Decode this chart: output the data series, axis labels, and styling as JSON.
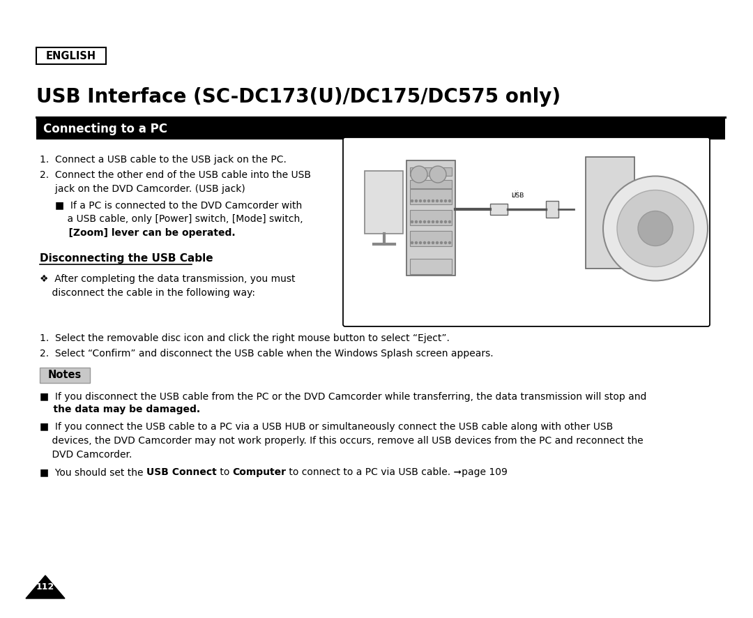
{
  "bg_color": "#ffffff",
  "english_label": "ENGLISH",
  "title": "USB Interface (SC-DC173(U)/DC175/DC575 only)",
  "section1_label": "Connecting to a PC",
  "section2_label": "Disconnecting the USB Cable",
  "step1": "1.  Connect a USB cable to the USB jack on the PC.",
  "step2a": "2.  Connect the other end of the USB cable into the USB",
  "step2b": "     jack on the DVD Camcorder. (USB jack)",
  "sub_bullet1": "■  If a PC is connected to the DVD Camcorder with",
  "sub_bullet2": "    a USB cable, only [Power] switch, [Mode] switch,",
  "sub_bullet3": "    [Zoom] lever can be operated.",
  "diamond_line1": "❖  After completing the data transmission, you must",
  "diamond_line2": "    disconnect the cable in the following way:",
  "step3": "1.  Select the removable disc icon and click the right mouse button to select “Eject”.",
  "step4": "2.  Select “Confirm” and disconnect the USB cable when the Windows Splash screen appears.",
  "notes_label": "Notes",
  "note1a": "■  If you disconnect the USB cable from the PC or the DVD Camcorder while transferring, the data transmission will stop and",
  "note1b": "    the data may be damaged.",
  "note2a": "■  If you connect the USB cable to a PC via a USB HUB or simultaneously connect the USB cable along with other USB",
  "note2b": "    devices, the DVD Camcorder may not work properly. If this occurs, remove all USB devices from the PC and reconnect the",
  "note2c": "    DVD Camcorder.",
  "note3_pre": "■  You should set the ",
  "note3_b1": "USB Connect",
  "note3_mid": " to ",
  "note3_b2": "Computer",
  "note3_suf": " to connect to a PC via USB cable. ➞page 109",
  "page_num": "112"
}
